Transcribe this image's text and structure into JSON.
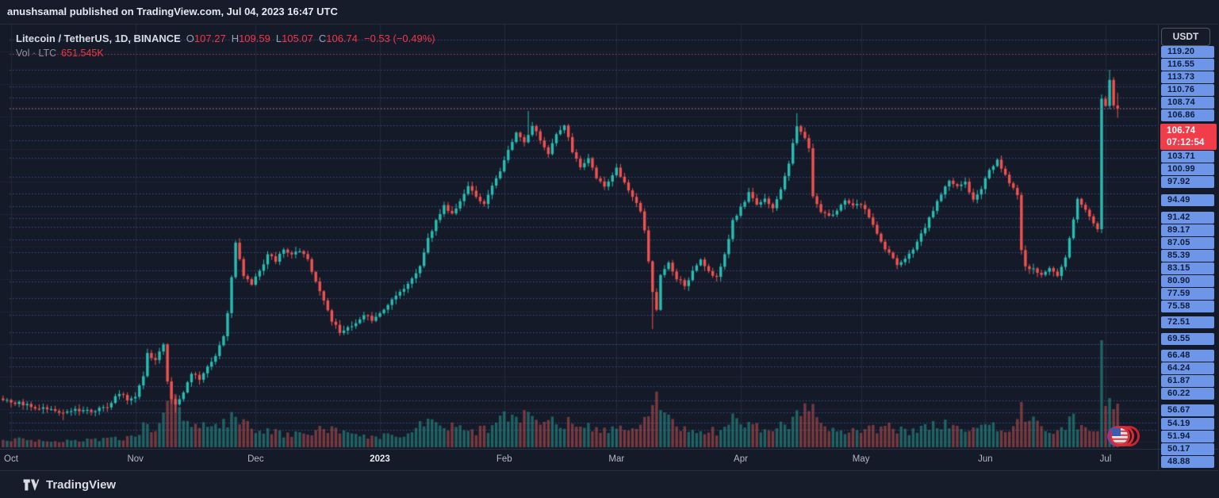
{
  "banner": {
    "text": "anushsamal published on TradingView.com, Jul 04, 2023 16:47 UTC"
  },
  "legend": {
    "symbol": "Litecoin / TetherUS, 1D, BINANCE",
    "ohlc": [
      {
        "label": "O",
        "value": "107.27"
      },
      {
        "label": "H",
        "value": "109.59"
      },
      {
        "label": "L",
        "value": "105.07"
      },
      {
        "label": "C",
        "value": "106.74"
      }
    ],
    "change": "−0.53 (−0.49%)",
    "volume_label": "Vol · LTC",
    "volume_value": "651.545K"
  },
  "price_axis": {
    "currency_button": "USDT",
    "last_price": {
      "value": "106.74",
      "countdown": "07:12:54",
      "price": 106.74
    },
    "alert_levels": [
      {
        "price": 119.2,
        "line": "blue"
      },
      {
        "price": 116.55,
        "line": "red"
      },
      {
        "price": 113.73,
        "line": "blue"
      },
      {
        "price": 110.76,
        "line": "blue"
      },
      {
        "price": 108.74,
        "line": "blue"
      },
      {
        "price": 106.86,
        "line": "blue"
      },
      {
        "price": 103.71,
        "line": "blue"
      },
      {
        "price": 100.99,
        "line": "blue"
      },
      {
        "price": 97.92,
        "line": "blue"
      },
      {
        "price": 94.49,
        "line": "blue"
      },
      {
        "price": 91.42,
        "line": "blue"
      },
      {
        "price": 89.17,
        "line": "blue"
      },
      {
        "price": 87.05,
        "line": "blue"
      },
      {
        "price": 85.39,
        "line": "blue"
      },
      {
        "price": 83.15,
        "line": "blue"
      },
      {
        "price": 80.9,
        "line": "blue"
      },
      {
        "price": 77.59,
        "line": "blue"
      },
      {
        "price": 75.58,
        "line": "blue"
      },
      {
        "price": 72.51,
        "line": "blue"
      },
      {
        "price": 69.55,
        "line": "blue"
      },
      {
        "price": 66.48,
        "line": "blue"
      },
      {
        "price": 64.24,
        "line": "blue"
      },
      {
        "price": 61.87,
        "line": "blue"
      },
      {
        "price": 60.22,
        "line": "blue"
      },
      {
        "price": 56.67,
        "line": "blue"
      },
      {
        "price": 54.19,
        "line": "blue"
      },
      {
        "price": 51.94,
        "line": "blue"
      },
      {
        "price": 50.17,
        "line": "blue"
      },
      {
        "price": 48.88,
        "line": "blue"
      }
    ]
  },
  "time_axis": {
    "labels": [
      {
        "text": "Oct",
        "day": 0,
        "year": false
      },
      {
        "text": "Nov",
        "day": 31,
        "year": false
      },
      {
        "text": "Dec",
        "day": 61,
        "year": false
      },
      {
        "text": "2023",
        "day": 92,
        "year": true
      },
      {
        "text": "Feb",
        "day": 123,
        "year": false
      },
      {
        "text": "Mar",
        "day": 151,
        "year": false
      },
      {
        "text": "Apr",
        "day": 182,
        "year": false
      },
      {
        "text": "May",
        "day": 212,
        "year": false
      },
      {
        "text": "Jun",
        "day": 243,
        "year": false
      },
      {
        "text": "Jul",
        "day": 273,
        "year": false
      }
    ]
  },
  "footer": {
    "brand": "TradingView"
  },
  "colors": {
    "candle_green": "#2abdb1",
    "candle_red": "#ef5350",
    "vol_green": "rgba(42,158,148,0.55)",
    "vol_red": "rgba(226,92,88,0.48)",
    "alert_blue_line": "#33558f",
    "alert_red_line": "#a84a55",
    "last_price_line": "#b84a55",
    "grid_h": "#1c2334",
    "grid_v": "#232a3a",
    "label_blue": "#6d95e8",
    "label_red": "#f13c49"
  },
  "chart_data": {
    "type": "candlestick+volume",
    "symbol": "LTCUSDT",
    "exchange": "BINANCE",
    "timeframe": "1D",
    "x_axis": {
      "start": "2022-10-01",
      "end": "2023-07-04",
      "day0": "2022-10-01"
    },
    "y_range": [
      48,
      117
    ],
    "last_candle": {
      "open": 107.27,
      "high": 109.59,
      "low": 105.07,
      "close": 106.74,
      "volume_display": "651.545K"
    },
    "close_keyframes": [
      [
        -2,
        54.2
      ],
      [
        1,
        53.8
      ],
      [
        5,
        53.2
      ],
      [
        9,
        52.4
      ],
      [
        13,
        52.0
      ],
      [
        16,
        52.6
      ],
      [
        20,
        52.2
      ],
      [
        24,
        53.2
      ],
      [
        27,
        55.4
      ],
      [
        29,
        54.2
      ],
      [
        31,
        54.8
      ],
      [
        33,
        58.5
      ],
      [
        34,
        62.4
      ],
      [
        36,
        61.6
      ],
      [
        38,
        64.3
      ],
      [
        39,
        57.5
      ],
      [
        40,
        54.5
      ],
      [
        41,
        53.2
      ],
      [
        43,
        55.5
      ],
      [
        45,
        59.0
      ],
      [
        47,
        58.2
      ],
      [
        49,
        60.5
      ],
      [
        51,
        62.0
      ],
      [
        53,
        65.5
      ],
      [
        54,
        70.0
      ],
      [
        56,
        82.5
      ],
      [
        57,
        79.5
      ],
      [
        58,
        76.5
      ],
      [
        60,
        75.2
      ],
      [
        62,
        77.5
      ],
      [
        64,
        80.5
      ],
      [
        66,
        79.2
      ],
      [
        68,
        81.5
      ],
      [
        70,
        80.2
      ],
      [
        72,
        81.2
      ],
      [
        74,
        79.5
      ],
      [
        76,
        75.5
      ],
      [
        78,
        72.0
      ],
      [
        80,
        68.5
      ],
      [
        82,
        66.4
      ],
      [
        84,
        67.2
      ],
      [
        86,
        68.2
      ],
      [
        88,
        69.6
      ],
      [
        90,
        68.6
      ],
      [
        92,
        69.8
      ],
      [
        95,
        72.5
      ],
      [
        98,
        74.5
      ],
      [
        100,
        76.2
      ],
      [
        102,
        78.5
      ],
      [
        104,
        83.2
      ],
      [
        106,
        86.5
      ],
      [
        108,
        89.5
      ],
      [
        110,
        87.5
      ],
      [
        112,
        90.0
      ],
      [
        114,
        92.8
      ],
      [
        116,
        90.5
      ],
      [
        118,
        89.2
      ],
      [
        120,
        93.0
      ],
      [
        122,
        95.5
      ],
      [
        124,
        99.5
      ],
      [
        126,
        102.5
      ],
      [
        128,
        100.5
      ],
      [
        130,
        103.8
      ],
      [
        132,
        101.0
      ],
      [
        134,
        98.5
      ],
      [
        136,
        102.0
      ],
      [
        138,
        103.5
      ],
      [
        140,
        99.0
      ],
      [
        142,
        96.2
      ],
      [
        144,
        98.0
      ],
      [
        146,
        94.2
      ],
      [
        148,
        92.5
      ],
      [
        150,
        94.5
      ],
      [
        151,
        95.8
      ],
      [
        153,
        93.2
      ],
      [
        155,
        90.5
      ],
      [
        157,
        88.5
      ],
      [
        158,
        85.0
      ],
      [
        160,
        74.0
      ],
      [
        161,
        70.5
      ],
      [
        162,
        76.5
      ],
      [
        164,
        79.0
      ],
      [
        166,
        76.2
      ],
      [
        168,
        74.8
      ],
      [
        170,
        77.5
      ],
      [
        172,
        79.5
      ],
      [
        174,
        77.2
      ],
      [
        176,
        76.2
      ],
      [
        178,
        80.5
      ],
      [
        180,
        86.5
      ],
      [
        182,
        89.0
      ],
      [
        184,
        91.5
      ],
      [
        186,
        89.2
      ],
      [
        188,
        90.5
      ],
      [
        190,
        88.6
      ],
      [
        192,
        92.0
      ],
      [
        194,
        97.0
      ],
      [
        196,
        103.5
      ],
      [
        198,
        101.5
      ],
      [
        199,
        99.5
      ],
      [
        200,
        91.2
      ],
      [
        202,
        88.2
      ],
      [
        204,
        87.2
      ],
      [
        206,
        88.6
      ],
      [
        208,
        90.0
      ],
      [
        210,
        89.2
      ],
      [
        212,
        89.6
      ],
      [
        214,
        87.2
      ],
      [
        216,
        84.2
      ],
      [
        218,
        81.6
      ],
      [
        221,
        78.8
      ],
      [
        224,
        80.5
      ],
      [
        226,
        82.5
      ],
      [
        229,
        87.0
      ],
      [
        232,
        91.5
      ],
      [
        234,
        94.0
      ],
      [
        236,
        92.5
      ],
      [
        238,
        93.6
      ],
      [
        240,
        90.2
      ],
      [
        242,
        92.5
      ],
      [
        244,
        95.5
      ],
      [
        246,
        97.5
      ],
      [
        247,
        95.6
      ],
      [
        249,
        93.5
      ],
      [
        251,
        91.0
      ],
      [
        252,
        81.2
      ],
      [
        253,
        78.5
      ],
      [
        255,
        77.6
      ],
      [
        257,
        76.6
      ],
      [
        259,
        77.8
      ],
      [
        261,
        76.8
      ],
      [
        263,
        80.2
      ],
      [
        265,
        87.0
      ],
      [
        266,
        90.5
      ],
      [
        268,
        88.6
      ],
      [
        270,
        86.2
      ],
      [
        271,
        85.0
      ],
      [
        272,
        108.5
      ],
      [
        273,
        107.2
      ],
      [
        274,
        111.9
      ],
      [
        275,
        107.3
      ],
      [
        276,
        106.74
      ]
    ],
    "wick_overrides": [
      {
        "day": 13,
        "low": 50.6
      },
      {
        "day": 41,
        "low": 52.0
      },
      {
        "day": 129,
        "high": 106.3
      },
      {
        "day": 160,
        "low": 67.0
      },
      {
        "day": 196,
        "high": 105.9
      },
      {
        "day": 274,
        "high": 113.7
      }
    ],
    "volume_keyframes": [
      [
        -2,
        9
      ],
      [
        1,
        10
      ],
      [
        10,
        8
      ],
      [
        20,
        9
      ],
      [
        30,
        12
      ],
      [
        33,
        26
      ],
      [
        36,
        20
      ],
      [
        38,
        45
      ],
      [
        40,
        68
      ],
      [
        41,
        55
      ],
      [
        43,
        35
      ],
      [
        46,
        28
      ],
      [
        50,
        22
      ],
      [
        54,
        32
      ],
      [
        56,
        47
      ],
      [
        58,
        30
      ],
      [
        62,
        22
      ],
      [
        66,
        18
      ],
      [
        70,
        16
      ],
      [
        76,
        20
      ],
      [
        80,
        26
      ],
      [
        84,
        16
      ],
      [
        90,
        13
      ],
      [
        95,
        15
      ],
      [
        100,
        18
      ],
      [
        104,
        36
      ],
      [
        108,
        30
      ],
      [
        112,
        24
      ],
      [
        116,
        20
      ],
      [
        120,
        26
      ],
      [
        124,
        40
      ],
      [
        127,
        34
      ],
      [
        130,
        42
      ],
      [
        134,
        30
      ],
      [
        138,
        32
      ],
      [
        142,
        26
      ],
      [
        146,
        24
      ],
      [
        150,
        22
      ],
      [
        155,
        24
      ],
      [
        158,
        36
      ],
      [
        160,
        62
      ],
      [
        161,
        58
      ],
      [
        162,
        48
      ],
      [
        166,
        28
      ],
      [
        170,
        22
      ],
      [
        176,
        20
      ],
      [
        180,
        34
      ],
      [
        184,
        26
      ],
      [
        190,
        22
      ],
      [
        194,
        30
      ],
      [
        196,
        44
      ],
      [
        200,
        46
      ],
      [
        204,
        26
      ],
      [
        208,
        20
      ],
      [
        214,
        22
      ],
      [
        218,
        26
      ],
      [
        224,
        20
      ],
      [
        229,
        26
      ],
      [
        232,
        30
      ],
      [
        236,
        22
      ],
      [
        240,
        20
      ],
      [
        244,
        26
      ],
      [
        248,
        22
      ],
      [
        251,
        30
      ],
      [
        252,
        50
      ],
      [
        253,
        40
      ],
      [
        257,
        24
      ],
      [
        261,
        20
      ],
      [
        263,
        28
      ],
      [
        265,
        34
      ],
      [
        268,
        24
      ],
      [
        271,
        20
      ],
      [
        272,
        135
      ],
      [
        273,
        52
      ],
      [
        274,
        62
      ],
      [
        275,
        48
      ],
      [
        276,
        55
      ]
    ]
  }
}
